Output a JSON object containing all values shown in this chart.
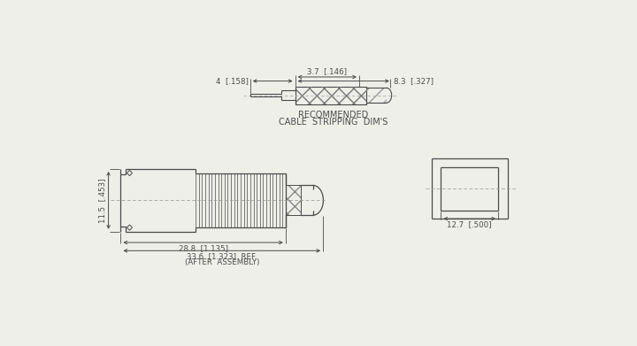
{
  "bg_color": "#efefea",
  "line_color": "#4a4a4a",
  "recommended_text_line1": "RECOMMENDED",
  "recommended_text_line2": "CABLE  STRIPPING  DIM'S",
  "dim_4": "4  [.158]",
  "dim_3_7": "3.7  [.146]",
  "dim_8_3": "8.3  [.327]",
  "dim_11_5": "11.5  [.453]",
  "dim_28_8": "28.8  [1.135]",
  "dim_33_6": "33.6  [1.323]  REF.",
  "after_assembly": "(AFTER  ASSEMBLY)",
  "dim_12_7": "12.7  [.500]"
}
